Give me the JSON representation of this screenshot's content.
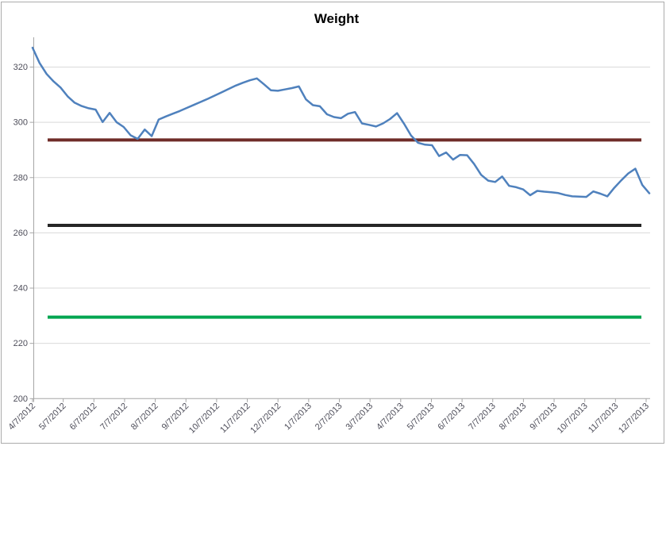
{
  "chart": {
    "frame_border_color": "#ababab",
    "background": "#ffffff"
  },
  "chart_data": {
    "type": "line",
    "title": "Weight",
    "xlabel": "",
    "ylabel": "",
    "legend": "none",
    "grid": true,
    "ylim": [
      200,
      330
    ],
    "y_ticks": [
      200,
      220,
      240,
      260,
      280,
      300,
      320
    ],
    "x_tick_labels": [
      "4/7/2012",
      "5/7/2012",
      "6/7/2012",
      "7/7/2012",
      "8/7/2012",
      "9/7/2012",
      "10/7/2012",
      "11/7/2012",
      "12/7/2012",
      "1/7/2013",
      "2/7/2013",
      "3/7/2013",
      "4/7/2013",
      "5/7/2013",
      "6/7/2013",
      "7/7/2013",
      "8/7/2013",
      "9/7/2013",
      "10/7/2013",
      "11/7/2013",
      "12/7/2013"
    ],
    "series": [
      {
        "name": "weight",
        "color": "#4f81bd",
        "dates": [
          "4/7/2012",
          "4/14/2012",
          "4/21/2012",
          "4/28/2012",
          "5/5/2012",
          "5/12/2012",
          "5/19/2012",
          "5/26/2012",
          "6/2/2012",
          "6/9/2012",
          "6/16/2012",
          "6/23/2012",
          "6/30/2012",
          "7/7/2012",
          "7/14/2012",
          "7/21/2012",
          "7/28/2012",
          "8/4/2012",
          "8/11/2012",
          "8/18/2012",
          "8/25/2012",
          "9/1/2012",
          "9/8/2012",
          "9/15/2012",
          "9/22/2012",
          "9/29/2012",
          "10/6/2012",
          "10/13/2012",
          "10/20/2012",
          "10/27/2012",
          "11/3/2012",
          "11/10/2012",
          "11/17/2012",
          "11/24/2012",
          "12/1/2012",
          "12/8/2012",
          "12/15/2012",
          "12/22/2012",
          "12/29/2012",
          "1/5/2013",
          "1/12/2013",
          "1/19/2013",
          "1/26/2013",
          "2/2/2013",
          "2/9/2013",
          "2/16/2013",
          "2/23/2013",
          "3/2/2013",
          "3/9/2013",
          "3/16/2013",
          "3/23/2013",
          "3/30/2013",
          "4/6/2013",
          "4/13/2013",
          "4/20/2013",
          "4/27/2013",
          "5/4/2013",
          "5/11/2013",
          "5/18/2013",
          "5/25/2013",
          "6/1/2013",
          "6/8/2013",
          "6/15/2013",
          "6/22/2013",
          "6/29/2013",
          "7/6/2013",
          "7/13/2013",
          "7/20/2013",
          "7/27/2013",
          "8/3/2013",
          "8/10/2013",
          "8/17/2013",
          "8/24/2013",
          "8/31/2013",
          "9/7/2013",
          "9/14/2013",
          "9/21/2013",
          "9/28/2013",
          "10/5/2013",
          "10/12/2013",
          "10/19/2013",
          "10/26/2013",
          "11/2/2013",
          "11/9/2013",
          "11/16/2013",
          "11/23/2013",
          "11/30/2013",
          "12/7/2013",
          "12/14/2013"
        ],
        "values": [
          327.0,
          321.5,
          317.5,
          314.8,
          312.6,
          309.4,
          307.1,
          305.9,
          305.1,
          304.6,
          300.1,
          303.4,
          300.0,
          298.3,
          295.3,
          294.0,
          297.4,
          295.0,
          301.0,
          302.1,
          303.1,
          304.1,
          305.2,
          306.3,
          307.4,
          308.5,
          309.7,
          310.9,
          312.1,
          313.3,
          314.3,
          315.2,
          315.9,
          313.8,
          311.6,
          311.4,
          311.9,
          312.4,
          313.0,
          308.3,
          306.2,
          305.8,
          302.9,
          301.9,
          301.5,
          303.1,
          303.7,
          299.6,
          299.1,
          298.5,
          299.6,
          301.2,
          303.3,
          299.5,
          295.2,
          292.6,
          291.9,
          291.7,
          287.8,
          289.1,
          286.5,
          288.2,
          288.1,
          284.9,
          281.0,
          278.9,
          278.4,
          280.4,
          277.0,
          276.5,
          275.7,
          273.6,
          275.2,
          274.9,
          274.7,
          274.4,
          273.7,
          273.2,
          273.1,
          273.0,
          275.0,
          274.2,
          273.2,
          276.3,
          279.0,
          281.5,
          283.2,
          277.3,
          274.3
        ]
      }
    ],
    "reference_lines": [
      {
        "name": "upper-reference-line",
        "value": 293.6,
        "color": "#6f2c28"
      },
      {
        "name": "middle-reference-line",
        "value": 262.7,
        "color": "#262626"
      },
      {
        "name": "lower-reference-line",
        "value": 229.5,
        "color": "#00a651"
      }
    ],
    "colors": {
      "gridline": "#d9d9d9",
      "axis": "#a6a6a6",
      "tick_label": "#4e4e5a",
      "title": "#000000"
    }
  }
}
